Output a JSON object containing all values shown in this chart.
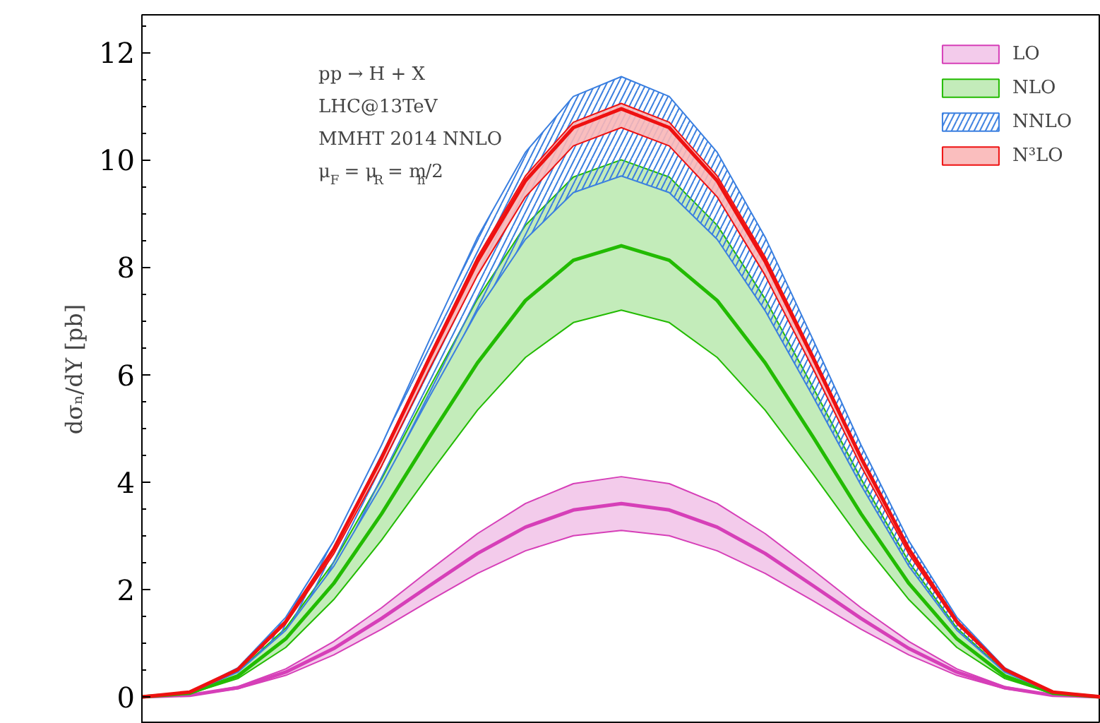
{
  "chart_data": {
    "type": "line",
    "ylabel": "dσₙ/dY [pb]",
    "categories": [
      null,
      null,
      null,
      null,
      null,
      null,
      null,
      null,
      null,
      null,
      null,
      null,
      null,
      null,
      null,
      null,
      null,
      null,
      null,
      null,
      null
    ],
    "series": [
      {
        "name": "LO",
        "color": "#d63fb8",
        "values": [
          0,
          0.03,
          0.17,
          0.46,
          0.9,
          1.46,
          2.07,
          2.67,
          3.16,
          3.48,
          3.6,
          3.48,
          3.16,
          2.67,
          2.07,
          1.46,
          0.9,
          0.46,
          0.17,
          0.03,
          0
        ],
        "lower": [
          0,
          0.03,
          0.15,
          0.4,
          0.78,
          1.26,
          1.79,
          2.3,
          2.72,
          3.0,
          3.1,
          3.0,
          2.72,
          2.3,
          1.79,
          1.26,
          0.78,
          0.4,
          0.15,
          0.03,
          0
        ],
        "upper": [
          0,
          0.03,
          0.19,
          0.52,
          1.03,
          1.66,
          2.36,
          3.04,
          3.6,
          3.97,
          4.1,
          3.97,
          3.6,
          3.04,
          2.36,
          1.66,
          1.03,
          0.52,
          0.19,
          0.03,
          0
        ]
      },
      {
        "name": "NLO",
        "color": "#22bb00",
        "values": [
          0,
          0.07,
          0.39,
          1.08,
          2.11,
          3.41,
          4.84,
          6.22,
          7.38,
          8.13,
          8.4,
          8.13,
          7.38,
          6.22,
          4.84,
          3.41,
          2.11,
          1.08,
          0.39,
          0.07,
          0
        ],
        "lower": [
          0,
          0.06,
          0.34,
          0.92,
          1.81,
          2.92,
          4.15,
          5.34,
          6.32,
          6.97,
          7.2,
          6.97,
          6.32,
          5.34,
          4.15,
          2.92,
          1.81,
          0.92,
          0.34,
          0.06,
          0
        ],
        "upper": [
          0,
          0.08,
          0.47,
          1.28,
          2.51,
          4.06,
          5.76,
          7.41,
          8.78,
          9.68,
          10.0,
          9.68,
          8.78,
          7.41,
          5.76,
          4.06,
          2.51,
          1.28,
          0.47,
          0.08,
          0
        ]
      },
      {
        "name": "NNLO",
        "color": "#3a7fe0",
        "values": [
          null,
          null,
          null,
          null,
          null,
          null,
          null,
          null,
          null,
          null,
          null,
          null,
          null,
          null,
          null,
          null,
          null,
          null,
          null,
          null,
          null
        ],
        "lower": [
          0,
          0.08,
          0.46,
          1.24,
          2.43,
          3.94,
          5.59,
          7.19,
          8.52,
          9.39,
          9.7,
          9.39,
          8.52,
          7.19,
          5.59,
          3.94,
          2.43,
          1.24,
          0.46,
          0.08,
          0
        ],
        "upper": [
          0,
          0.09,
          0.54,
          1.48,
          2.9,
          4.69,
          6.65,
          8.56,
          10.14,
          11.18,
          11.55,
          11.18,
          10.14,
          8.56,
          6.65,
          4.69,
          2.9,
          1.48,
          0.54,
          0.09,
          0
        ]
      },
      {
        "name": "N³LO",
        "color": "#ee1111",
        "values": [
          0,
          0.09,
          0.51,
          1.4,
          2.75,
          4.45,
          6.31,
          8.11,
          9.61,
          10.6,
          10.95,
          10.6,
          9.61,
          8.11,
          6.31,
          4.45,
          2.75,
          1.4,
          0.51,
          0.09,
          0
        ],
        "lower": [
          0,
          0.09,
          0.5,
          1.36,
          2.66,
          4.3,
          6.11,
          7.85,
          9.31,
          10.26,
          10.6,
          10.26,
          9.31,
          7.85,
          6.11,
          4.3,
          2.66,
          1.36,
          0.5,
          0.09,
          0
        ],
        "upper": [
          0,
          0.09,
          0.52,
          1.41,
          2.77,
          4.49,
          6.36,
          8.19,
          9.7,
          10.7,
          11.05,
          10.7,
          9.7,
          8.19,
          6.36,
          4.49,
          2.77,
          1.41,
          0.52,
          0.09,
          0
        ]
      }
    ],
    "ylim": [
      -0.5,
      12.7
    ],
    "yticks": [
      0,
      2,
      4,
      6,
      8,
      10,
      12
    ],
    "tick_labels": "y",
    "grid": false,
    "legend": "top right",
    "annotations": [
      "pp → H + X",
      "LHC@13TeV",
      "MMHT 2014 NNLO",
      "μ$_{F}$ = μ$_{R}$ = m$_{h}$/2"
    ]
  }
}
